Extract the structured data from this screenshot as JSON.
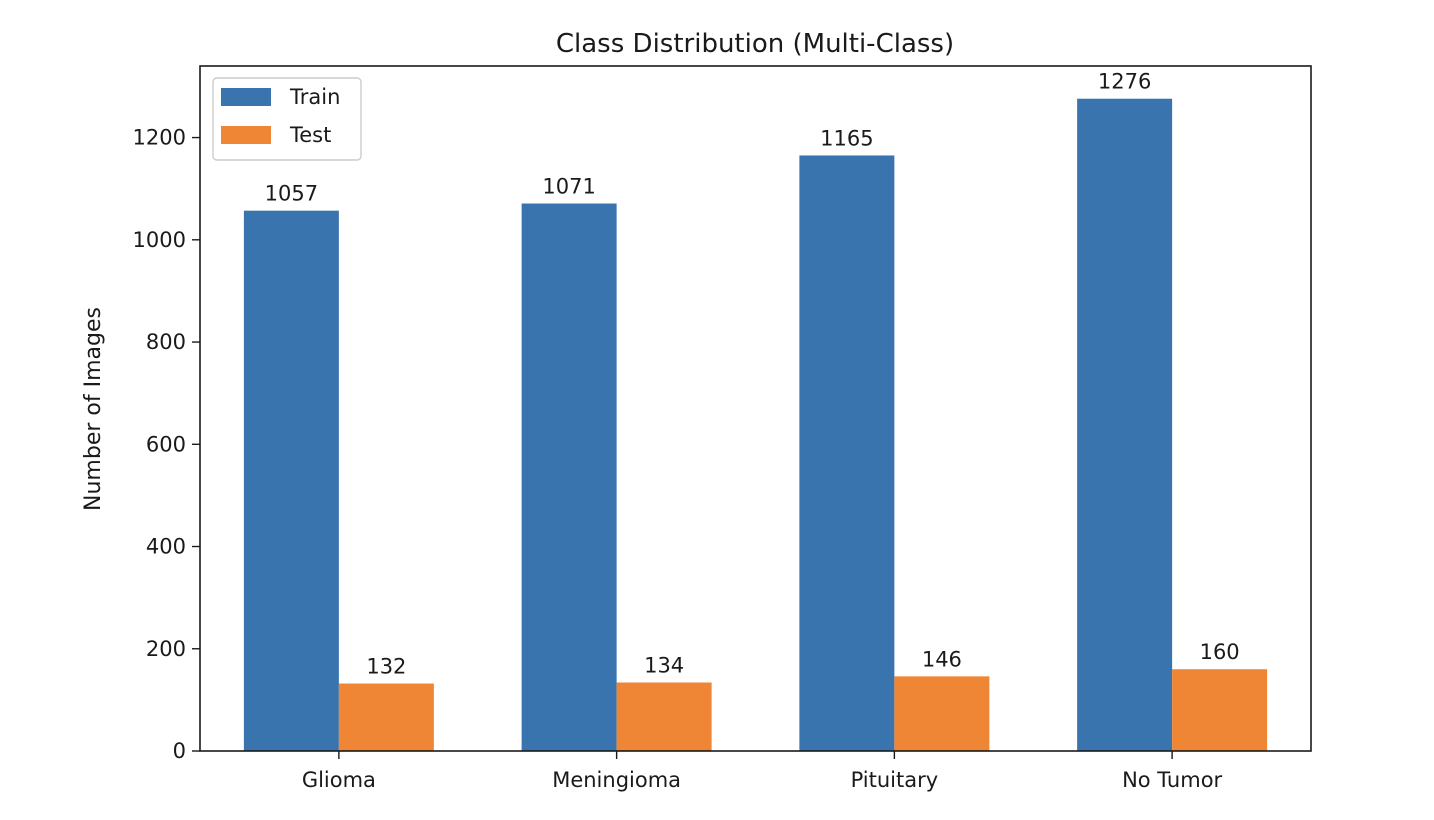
{
  "chart_data": {
    "type": "bar",
    "title": "Class Distribution (Multi-Class)",
    "xlabel": "",
    "ylabel": "Number of Images",
    "categories": [
      "Glioma",
      "Meningioma",
      "Pituitary",
      "No Tumor"
    ],
    "series": [
      {
        "name": "Train",
        "color": "#3a74ae",
        "values": [
          1057,
          1071,
          1165,
          1276
        ]
      },
      {
        "name": "Test",
        "color": "#ef8635",
        "values": [
          132,
          134,
          146,
          160
        ]
      }
    ],
    "ylim": [
      0,
      1340
    ],
    "yticks": [
      0,
      200,
      400,
      600,
      800,
      1000,
      1200
    ],
    "grid": false,
    "legend": "top-left"
  }
}
